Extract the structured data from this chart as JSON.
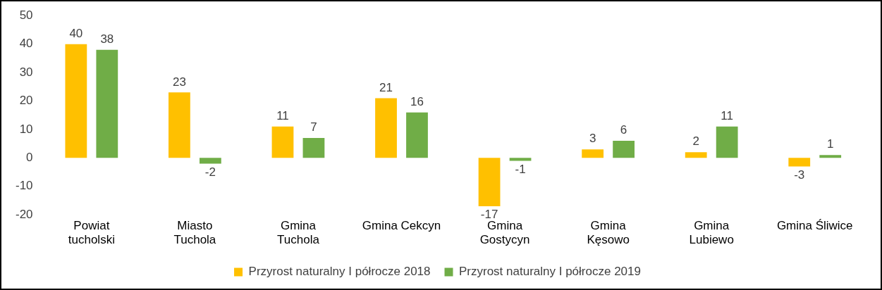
{
  "chart_data": {
    "type": "bar",
    "categories": [
      "Powiat\ntucholski",
      "Miasto\nTuchola",
      "Gmina\nTuchola",
      "Gmina Cekcyn",
      "Gmina\nGostycyn",
      "Gmina\nKęsowo",
      "Gmina\nLubiewo",
      "Gmina Śliwice"
    ],
    "series": [
      {
        "name": "Przyrost naturalny I półrocze 2018",
        "color": "#ffc000",
        "values": [
          40,
          23,
          11,
          21,
          -17,
          3,
          2,
          -3
        ]
      },
      {
        "name": "Przyrost naturalny I półrocze 2019",
        "color": "#70ad47",
        "values": [
          38,
          -2,
          7,
          16,
          -1,
          6,
          11,
          1
        ]
      }
    ],
    "ylim": [
      -20,
      50
    ],
    "yticks": [
      -20,
      -10,
      0,
      10,
      20,
      30,
      40,
      50
    ],
    "grid": false,
    "legend": "bottom",
    "data_labels": true
  }
}
